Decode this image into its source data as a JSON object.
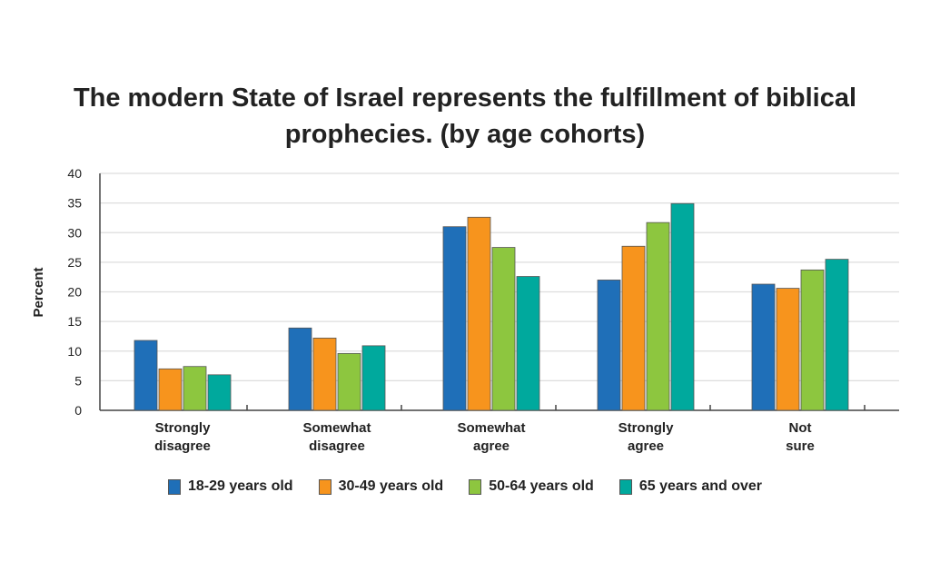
{
  "chart_data": {
    "type": "bar",
    "title_lines": [
      "The modern State of Israel represents the fulfillment of biblical",
      "prophecies.  (by age cohorts)"
    ],
    "xlabel": "",
    "ylabel": "Percent",
    "ylim": [
      0,
      40
    ],
    "yticks": [
      0,
      5,
      10,
      15,
      20,
      25,
      30,
      35,
      40
    ],
    "grid": true,
    "legend_position": "bottom",
    "categories": [
      [
        "Strongly",
        "disagree"
      ],
      [
        "Somewhat",
        "disagree"
      ],
      [
        "Somewhat",
        "agree"
      ],
      [
        "Strongly",
        "agree"
      ],
      [
        "Not",
        "sure"
      ]
    ],
    "series": [
      {
        "name": "18-29 years old",
        "color": "#1f6fb8",
        "values": [
          11.8,
          13.9,
          31.0,
          22.0,
          21.3
        ]
      },
      {
        "name": "30-49 years old",
        "color": "#f7941d",
        "values": [
          7.0,
          12.2,
          32.6,
          27.7,
          20.6
        ]
      },
      {
        "name": "50-64 years old",
        "color": "#8dc63f",
        "values": [
          7.4,
          9.6,
          27.5,
          31.7,
          23.7
        ]
      },
      {
        "name": "65 years and over",
        "color": "#00a99d",
        "values": [
          6.0,
          10.9,
          22.6,
          34.9,
          25.5
        ]
      }
    ]
  }
}
